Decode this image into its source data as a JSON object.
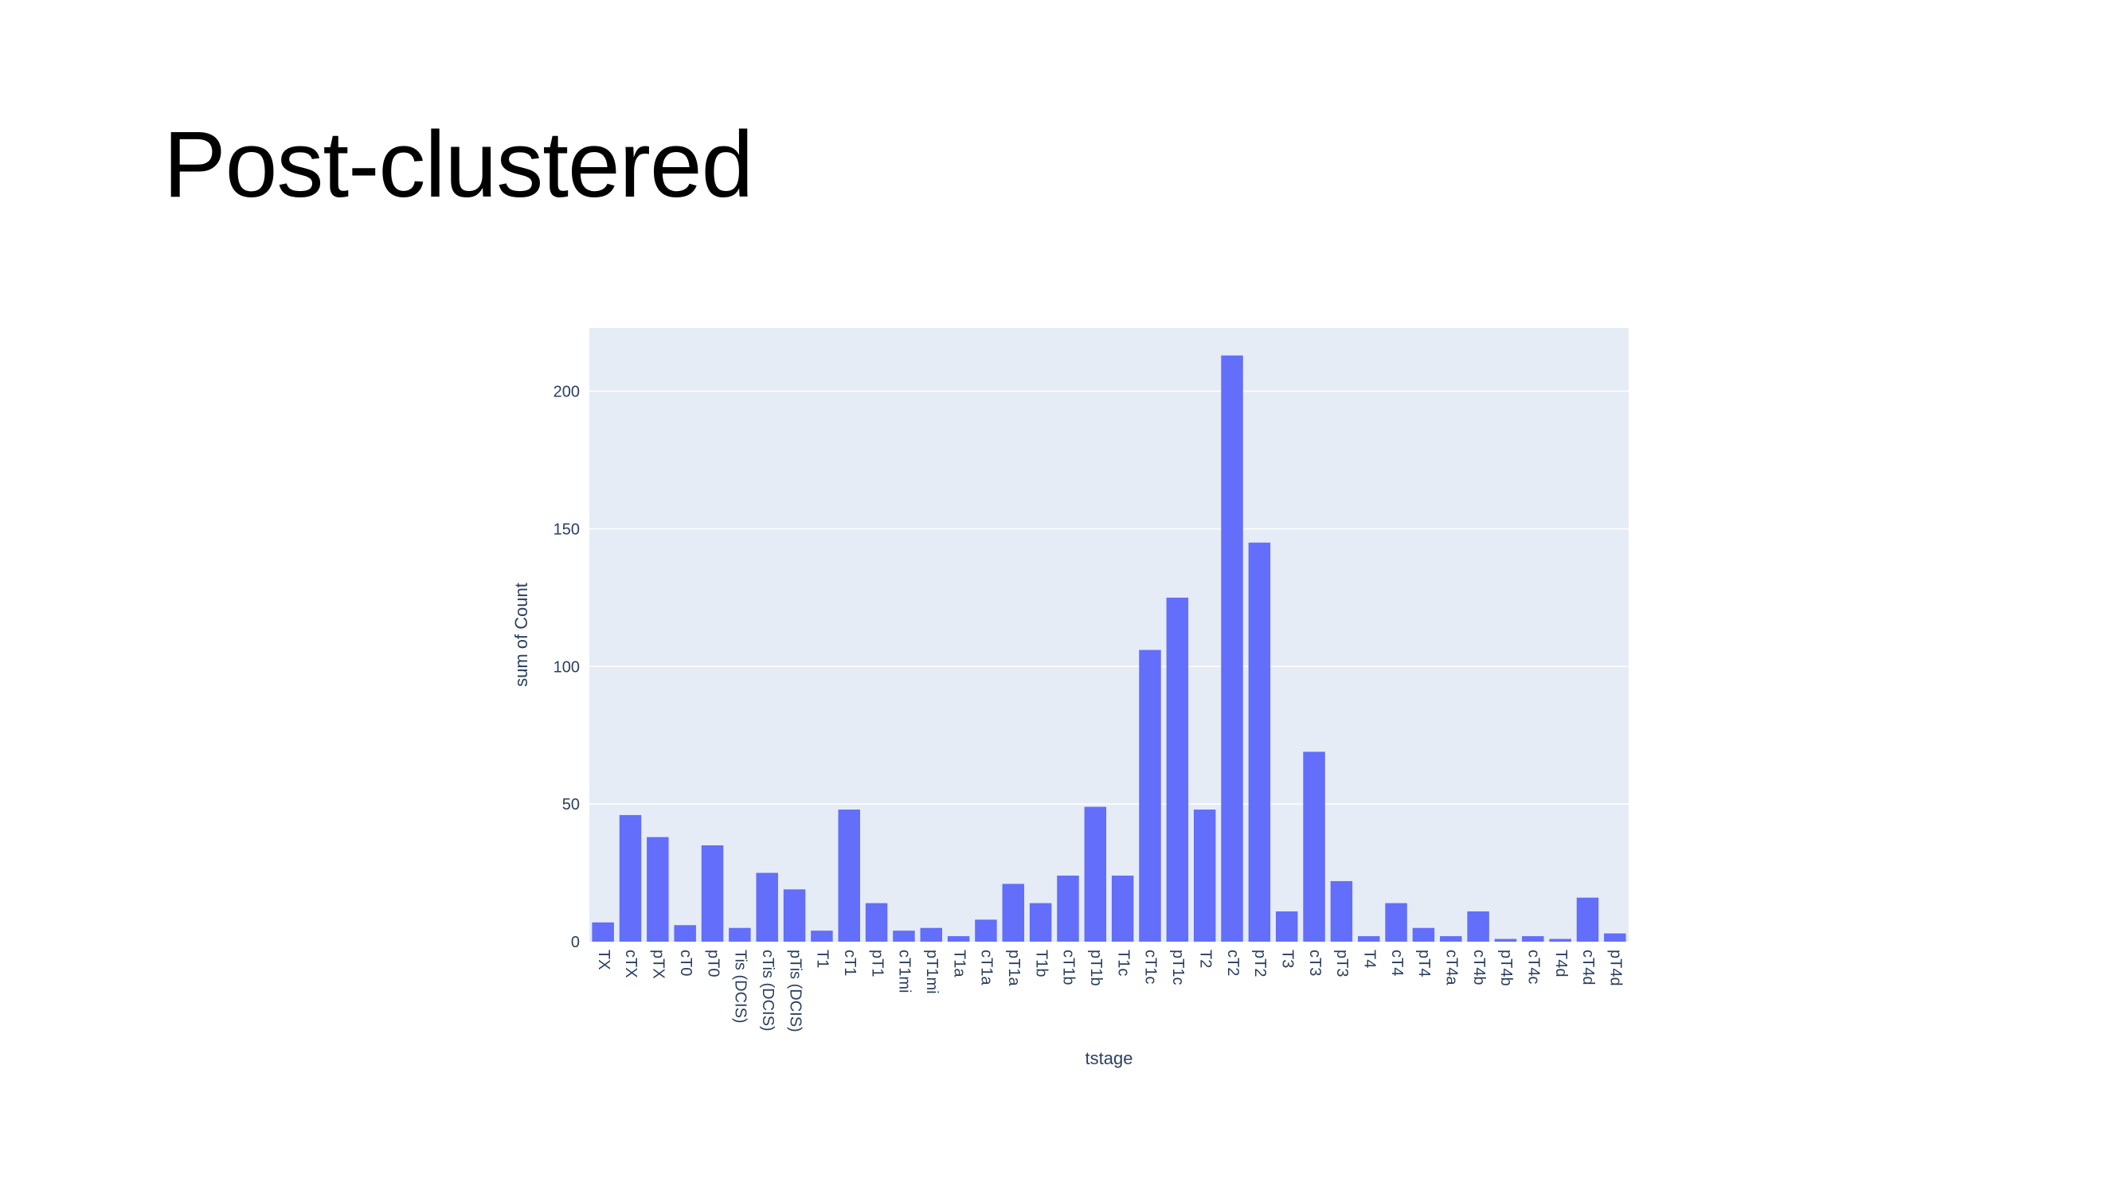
{
  "slide": {
    "title": "Post-clustered"
  },
  "chart_data": {
    "type": "bar",
    "title": "",
    "xlabel": "tstage",
    "ylabel": "sum of Count",
    "ylim": [
      0,
      223
    ],
    "yticks": [
      0,
      50,
      100,
      150,
      200
    ],
    "grid": true,
    "colors": {
      "bar": "#636efa",
      "plot_bg": "#e5ecf6",
      "grid": "#ffffff",
      "text": "#2a3f5f"
    },
    "categories": [
      "TX",
      "cTX",
      "pTX",
      "cT0",
      "pT0",
      "Tis (DCIS)",
      "cTis (DCIS)",
      "pTis (DCIS)",
      "T1",
      "cT1",
      "pT1",
      "cT1mi",
      "pT1mi",
      "T1a",
      "cT1a",
      "pT1a",
      "T1b",
      "cT1b",
      "pT1b",
      "T1c",
      "cT1c",
      "pT1c",
      "T2",
      "cT2",
      "pT2",
      "T3",
      "cT3",
      "pT3",
      "T4",
      "cT4",
      "pT4",
      "cT4a",
      "cT4b",
      "pT4b",
      "cT4c",
      "T4d",
      "cT4d",
      "pT4d"
    ],
    "values": [
      7,
      46,
      38,
      6,
      35,
      5,
      25,
      19,
      4,
      48,
      14,
      4,
      5,
      2,
      8,
      21,
      14,
      24,
      49,
      24,
      106,
      125,
      48,
      213,
      145,
      11,
      69,
      22,
      2,
      14,
      5,
      2,
      11,
      1,
      2,
      1,
      16,
      3
    ]
  }
}
